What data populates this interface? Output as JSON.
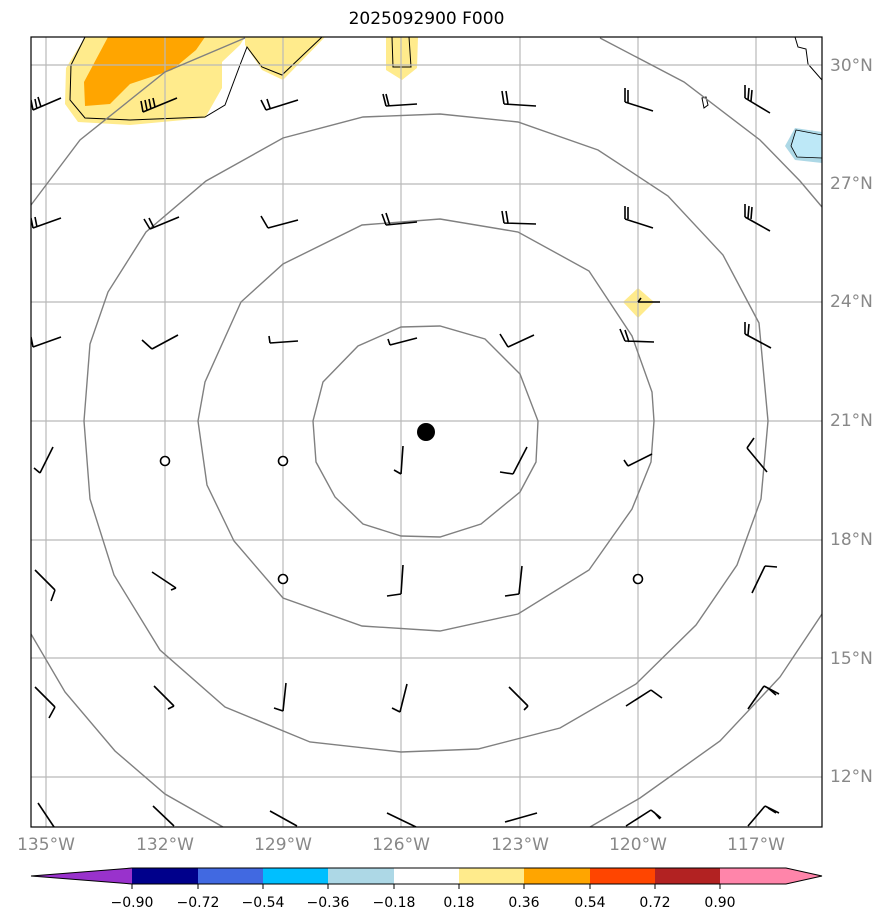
{
  "title": "2025092900 F000",
  "longitude_labels": [
    "135°W",
    "132°W",
    "129°W",
    "126°W",
    "123°W",
    "120°W",
    "117°W"
  ],
  "latitude_labels": [
    "30°N",
    "27°N",
    "24°N",
    "21°N",
    "18°N",
    "15°N",
    "12°N"
  ],
  "colorbar": {
    "tick_labels": [
      "−0.90",
      "−0.72",
      "−0.54",
      "−0.36",
      "−0.18",
      "0.18",
      "0.36",
      "0.54",
      "0.72",
      "0.90"
    ],
    "colors": [
      "#9932cc",
      "#00008b",
      "#4169e1",
      "#00bfff",
      "#add8e6",
      "#ffffff",
      "#ffeb8c",
      "#ffa500",
      "#ff4500",
      "#b22222",
      "#ff85aa"
    ]
  },
  "storm_center": {
    "lon": -125.7,
    "lat": 20.75
  }
}
